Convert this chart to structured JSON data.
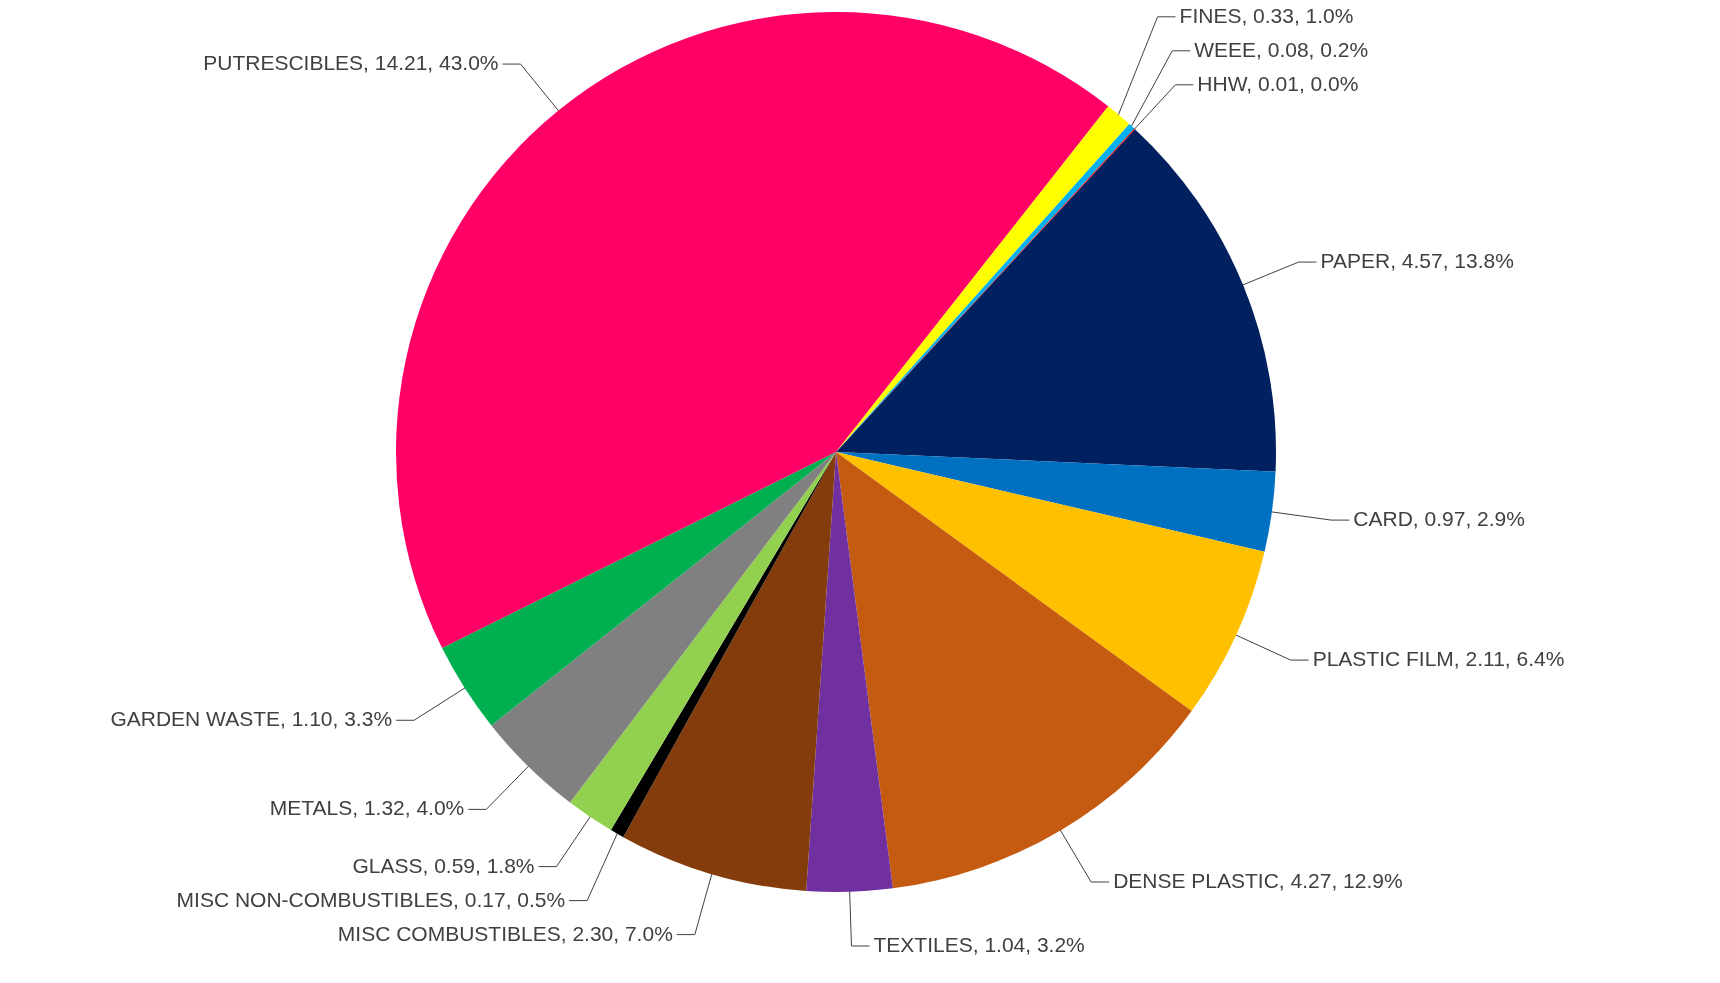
{
  "chart_data": {
    "type": "pie",
    "categories": [
      "PAPER",
      "CARD",
      "PLASTIC FILM",
      "DENSE PLASTIC",
      "TEXTILES",
      "MISC COMBUSTIBLES",
      "MISC NON-COMBUSTIBLES",
      "GLASS",
      "METALS",
      "GARDEN WASTE",
      "PUTRESCIBLES",
      "FINES",
      "WEEE",
      "HHW"
    ],
    "values": [
      4.57,
      0.97,
      2.11,
      4.27,
      1.04,
      2.3,
      0.17,
      0.59,
      1.32,
      1.1,
      14.21,
      0.33,
      0.08,
      0.01
    ],
    "value_labels": [
      "4.57, 13.8%",
      "0.97, 2.9%",
      "2.11, 6.4%",
      "4.27, 12.9%",
      "1.04, 3.2%",
      "2.30, 7.0%",
      "0.17, 0.5%",
      "0.59, 1.8%",
      "1.32, 4.0%",
      "1.10, 3.3%",
      "14.21, 43.0%",
      "0.33, 1.0%",
      "0.08, 0.2%",
      "0.01, 0.0%"
    ],
    "colors": [
      "#002060",
      "#0070c0",
      "#ffc000",
      "#c55a11",
      "#7030a0",
      "#843c0c",
      "#000000",
      "#92d050",
      "#808080",
      "#00b050",
      "#ff0066",
      "#ffff00",
      "#00b0f0",
      "#ff0000"
    ]
  }
}
